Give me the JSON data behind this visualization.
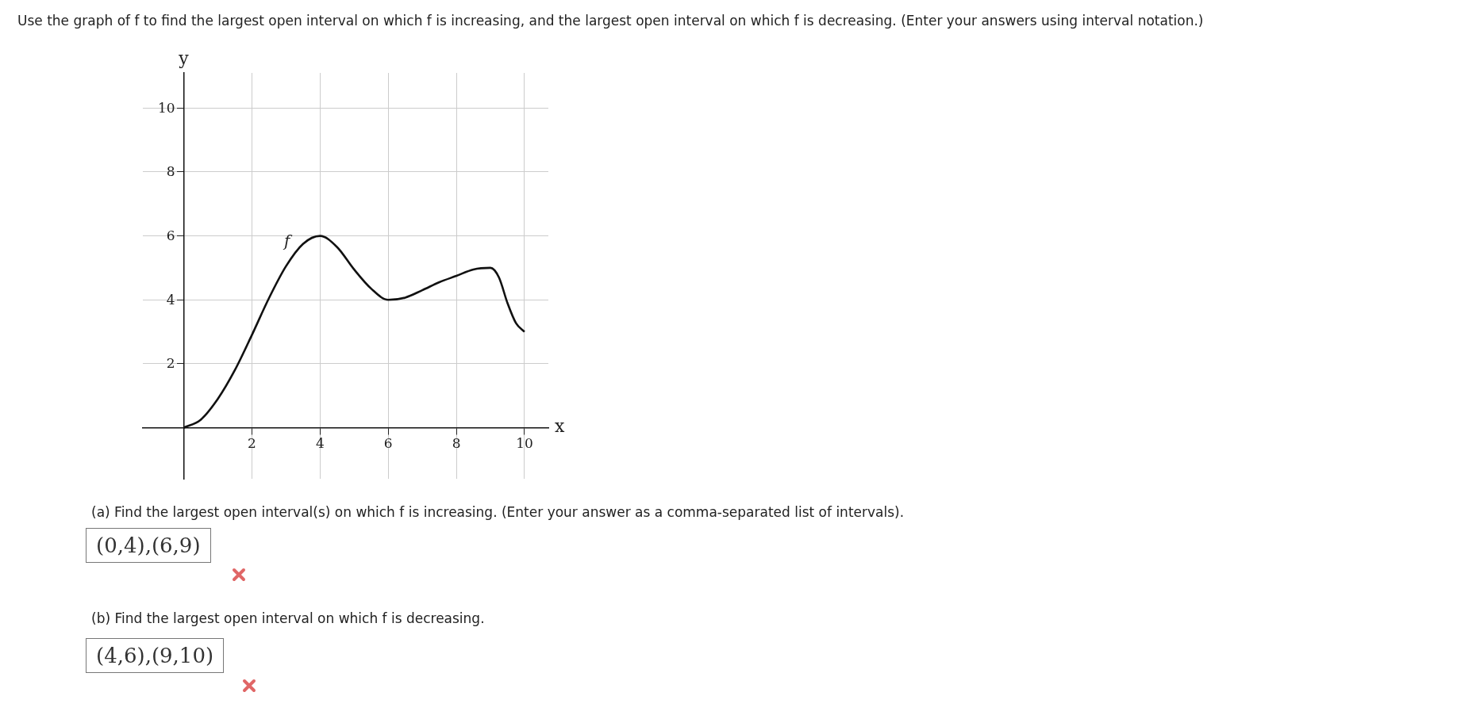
{
  "chart_data": {
    "type": "line",
    "title": "Use the graph of f to find the largest open interval on which f is increasing, and the largest open interval on which f is decreasing. (Enter your answers using interval notation.)",
    "xlabel": "x",
    "ylabel": "y",
    "x": [
      0,
      0.5,
      1,
      1.5,
      2,
      2.5,
      3,
      3.5,
      4,
      4.5,
      5,
      5.5,
      6,
      6.5,
      7,
      7.5,
      8,
      8.5,
      9,
      9.25,
      9.5,
      9.75,
      10
    ],
    "series": [
      {
        "color": "#111111",
        "values": [
          0,
          0.25,
          0.9,
          1.8,
          2.9,
          4.05,
          5.05,
          5.75,
          6,
          5.65,
          4.95,
          4.35,
          4,
          4.07,
          4.3,
          4.55,
          4.75,
          4.95,
          5,
          4.7,
          3.9,
          3.27,
          3
        ]
      }
    ],
    "xlim": [
      -1.2,
      10.7
    ],
    "ylim": [
      -1.6,
      11.1
    ],
    "xticks": [
      2,
      4,
      6,
      8,
      10
    ],
    "yticks": [
      2,
      4,
      6,
      8,
      10
    ],
    "grid": true,
    "marker": "none",
    "annotations": [
      "f",
      "(a) Find the largest open interval(s) on which f is increasing. (Enter your answer as a comma-separated list of intervals).",
      "(0,4),(6,9)",
      "(b) Find the largest open interval on which f is decreasing.",
      "(4,6),(9,10)"
    ]
  }
}
